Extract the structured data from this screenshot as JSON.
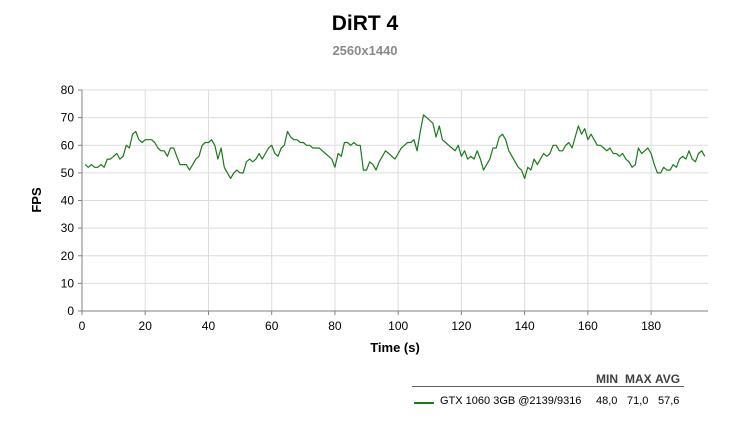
{
  "title": "DiRT 4",
  "subtitle": "2560x1440",
  "chart_data": {
    "type": "line",
    "title": "DiRT 4",
    "subtitle": "2560x1440",
    "xlabel": "Time (s)",
    "ylabel": "FPS",
    "xlim": [
      0,
      198
    ],
    "ylim": [
      0,
      80
    ],
    "x_ticks": [
      0,
      20,
      40,
      60,
      80,
      100,
      120,
      140,
      160,
      180
    ],
    "y_ticks": [
      0,
      10,
      20,
      30,
      40,
      50,
      60,
      70,
      80
    ],
    "grid": true,
    "legend_position": "bottom-right",
    "series": [
      {
        "name": "GTX 1060 3GB @2139/9316",
        "color": "#1a7a1a",
        "x": [
          1,
          2,
          3,
          4,
          5,
          6,
          7,
          8,
          9,
          10,
          11,
          12,
          13,
          14,
          15,
          16,
          17,
          18,
          19,
          20,
          21,
          22,
          23,
          24,
          25,
          26,
          27,
          28,
          29,
          30,
          31,
          32,
          33,
          34,
          35,
          36,
          37,
          38,
          39,
          40,
          41,
          42,
          43,
          44,
          45,
          46,
          47,
          48,
          49,
          50,
          51,
          52,
          53,
          54,
          55,
          56,
          57,
          58,
          59,
          60,
          61,
          62,
          63,
          64,
          65,
          66,
          67,
          68,
          69,
          70,
          71,
          72,
          73,
          74,
          75,
          76,
          77,
          78,
          79,
          80,
          81,
          82,
          83,
          84,
          85,
          86,
          87,
          88,
          89,
          90,
          91,
          92,
          93,
          94,
          95,
          96,
          97,
          98,
          99,
          100,
          101,
          102,
          103,
          104,
          105,
          106,
          107,
          108,
          109,
          110,
          111,
          112,
          113,
          114,
          115,
          116,
          117,
          118,
          119,
          120,
          121,
          122,
          123,
          124,
          125,
          126,
          127,
          128,
          129,
          130,
          131,
          132,
          133,
          134,
          135,
          136,
          137,
          138,
          139,
          140,
          141,
          142,
          143,
          144,
          145,
          146,
          147,
          148,
          149,
          150,
          151,
          152,
          153,
          154,
          155,
          156,
          157,
          158,
          159,
          160,
          161,
          162,
          163,
          164,
          165,
          166,
          167,
          168,
          169,
          170,
          171,
          172,
          173,
          174,
          175,
          176,
          177,
          178,
          179,
          180,
          181,
          182,
          183,
          184,
          185,
          186,
          187,
          188,
          189,
          190,
          191,
          192,
          193,
          194,
          195,
          196,
          197
        ],
        "y": [
          53,
          52,
          53,
          52,
          52,
          53,
          52,
          55,
          55,
          56,
          57,
          55,
          56,
          60,
          59,
          64,
          65,
          62,
          61,
          62,
          62,
          62,
          61,
          59,
          58,
          58,
          56,
          59,
          59,
          56,
          53,
          53,
          53,
          51,
          53,
          55,
          56,
          60,
          61,
          61,
          62,
          60,
          55,
          59,
          52,
          50,
          48,
          50,
          51,
          50,
          50,
          54,
          55,
          54,
          55,
          57,
          55,
          57,
          59,
          60,
          57,
          56,
          59,
          60,
          65,
          63,
          62,
          62,
          61,
          61,
          60,
          60,
          59,
          59,
          59,
          58,
          57,
          56,
          55,
          52,
          57,
          56,
          61,
          61,
          60,
          61,
          60,
          60,
          51,
          51,
          54,
          53,
          51,
          54,
          56,
          58,
          57,
          56,
          55,
          57,
          59,
          60,
          61,
          61,
          62,
          58,
          65,
          71,
          70,
          69,
          68,
          63,
          67,
          62,
          61,
          60,
          59,
          58,
          60,
          56,
          58,
          55,
          56,
          55,
          58,
          55,
          51,
          53,
          55,
          59,
          59,
          63,
          64,
          62,
          58,
          56,
          54,
          52,
          51,
          48,
          52,
          51,
          55,
          53,
          55,
          57,
          56,
          57,
          60,
          60,
          58,
          58,
          60,
          61,
          59,
          63,
          67,
          64,
          66,
          62,
          64,
          62,
          60,
          60,
          59,
          58,
          59,
          57,
          57,
          56,
          57,
          55,
          54,
          52,
          53,
          59,
          57,
          58,
          59,
          57,
          53,
          50,
          50,
          52,
          51,
          51,
          53,
          52,
          55,
          56,
          55,
          58,
          55,
          54,
          57,
          58,
          56
        ]
      }
    ],
    "stats_headers": [
      "MIN",
      "MAX",
      "AVG"
    ],
    "stats": [
      {
        "series": "GTX 1060 3GB @2139/9316",
        "min": "48,0",
        "max": "71,0",
        "avg": "57,6"
      }
    ]
  }
}
